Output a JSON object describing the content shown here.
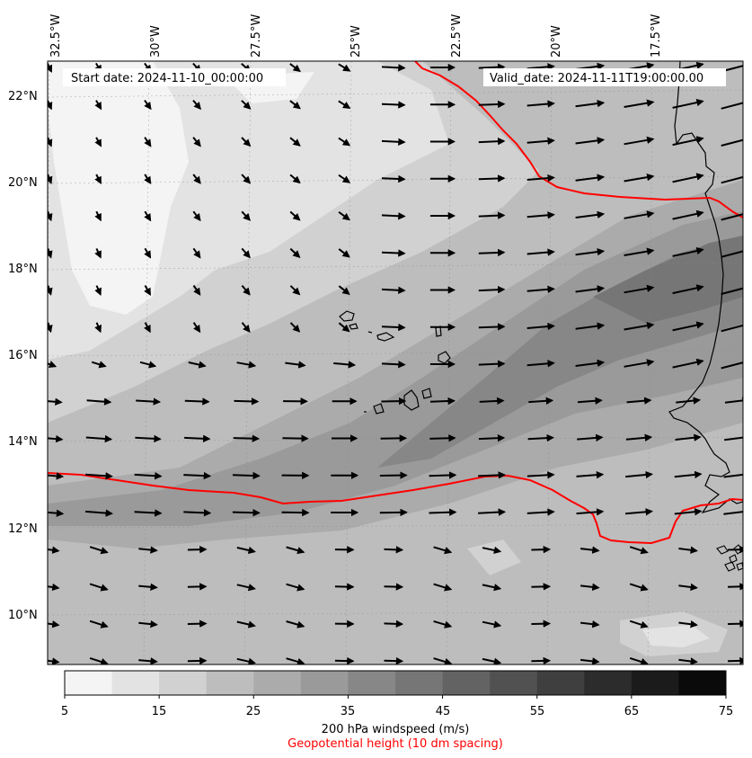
{
  "header": {
    "start_date": "Start date: 2024-11-10_00:00:00",
    "valid_date": "Valid_date: 2024-11-11T19:00:00.00"
  },
  "map": {
    "lon_ticks": [
      {
        "value": -32.5,
        "label": "32.5°W"
      },
      {
        "value": -30,
        "label": "30°W"
      },
      {
        "value": -27.5,
        "label": "27.5°W"
      },
      {
        "value": -25,
        "label": "25°W"
      },
      {
        "value": -22.5,
        "label": "22.5°W"
      },
      {
        "value": -20,
        "label": "20°W"
      },
      {
        "value": -17.5,
        "label": "17.5°W"
      }
    ],
    "lat_ticks": [
      {
        "value": 22,
        "label": "22°N"
      },
      {
        "value": 20,
        "label": "20°N"
      },
      {
        "value": 18,
        "label": "18°N"
      },
      {
        "value": 16,
        "label": "16°N"
      },
      {
        "value": 14,
        "label": "14°N"
      },
      {
        "value": 12,
        "label": "12°N"
      },
      {
        "value": 10,
        "label": "10°N"
      }
    ],
    "lon_range": [
      -32.5,
      -15.0
    ],
    "lat_range": [
      8.9,
      22.8
    ],
    "gridlines": true,
    "geopotential_contour_color": "#ff0000",
    "coastline_color": "#000000",
    "wind_arrow_color": "#000000"
  },
  "colorbar": {
    "ticks": [
      "5",
      "15",
      "25",
      "35",
      "45",
      "55",
      "65",
      "75"
    ],
    "levels": [
      5,
      10,
      15,
      20,
      25,
      30,
      35,
      40,
      45,
      50,
      55,
      60,
      65,
      70,
      75
    ],
    "colors": [
      "#f4f4f4",
      "#e3e3e3",
      "#d1d1d1",
      "#bdbdbd",
      "#ababab",
      "#9a9a9a",
      "#878787",
      "#767676",
      "#636363",
      "#515151",
      "#3f3f3f",
      "#2c2c2c",
      "#1b1b1b",
      "#0a0a0a"
    ],
    "label": "200 hPa windspeed (m/s)",
    "sublabel": "Geopotential height (10 dm spacing)",
    "sublabel_color": "#ff0000"
  }
}
